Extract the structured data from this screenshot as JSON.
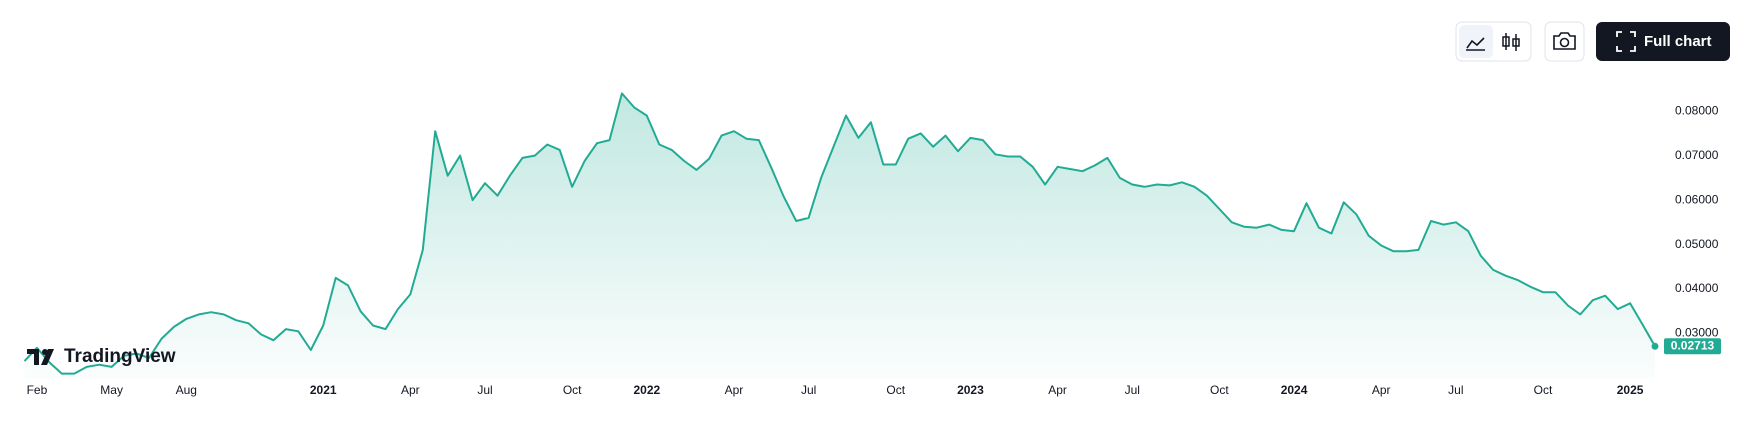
{
  "chart_data": {
    "type": "line",
    "categories": [
      null,
      "Feb",
      null,
      null,
      null,
      null,
      null,
      "May",
      null,
      null,
      null,
      null,
      null,
      "Aug",
      null,
      null,
      null,
      null,
      null,
      null,
      null,
      null,
      null,
      null,
      "2021",
      null,
      null,
      null,
      null,
      null,
      null,
      "Apr",
      null,
      null,
      null,
      null,
      null,
      "Jul",
      null,
      null,
      null,
      null,
      null,
      null,
      "Oct",
      null,
      null,
      null,
      null,
      null,
      "2022",
      null,
      null,
      null,
      null,
      null,
      null,
      "Apr",
      null,
      null,
      null,
      null,
      null,
      "Jul",
      null,
      null,
      null,
      null,
      null,
      null,
      "Oct",
      null,
      null,
      null,
      null,
      null,
      "2023",
      null,
      null,
      null,
      null,
      null,
      null,
      "Apr",
      null,
      null,
      null,
      null,
      null,
      "Jul",
      null,
      null,
      null,
      null,
      null,
      null,
      "Oct",
      null,
      null,
      null,
      null,
      null,
      "2024",
      null,
      null,
      null,
      null,
      null,
      null,
      "Apr",
      null,
      null,
      null,
      null,
      null,
      "Jul",
      null,
      null,
      null,
      null,
      null,
      null,
      "Oct",
      null,
      null,
      null,
      null,
      null,
      null,
      "2025",
      null,
      null
    ],
    "values": [
      0.0238,
      0.0268,
      0.0235,
      0.021,
      0.021,
      0.0225,
      0.023,
      0.0225,
      0.025,
      0.0255,
      0.0245,
      0.0288,
      0.0315,
      0.0333,
      0.0343,
      0.0348,
      0.0343,
      0.033,
      0.0323,
      0.0298,
      0.0285,
      0.031,
      0.0305,
      0.0263,
      0.0318,
      0.0425,
      0.0408,
      0.035,
      0.0318,
      0.031,
      0.0355,
      0.0388,
      0.0488,
      0.0755,
      0.0655,
      0.07,
      0.06,
      0.0638,
      0.061,
      0.0655,
      0.0695,
      0.07,
      0.0725,
      0.0713,
      0.063,
      0.0688,
      0.0728,
      0.0735,
      0.084,
      0.0808,
      0.079,
      0.0725,
      0.0713,
      0.0688,
      0.0668,
      0.0693,
      0.0745,
      0.0755,
      0.0738,
      0.0735,
      0.0673,
      0.0608,
      0.0553,
      0.056,
      0.065,
      0.072,
      0.079,
      0.074,
      0.0775,
      0.068,
      0.068,
      0.0738,
      0.075,
      0.072,
      0.0745,
      0.071,
      0.074,
      0.0735,
      0.0703,
      0.0698,
      0.0698,
      0.0675,
      0.0635,
      0.0675,
      0.067,
      0.0665,
      0.0678,
      0.0695,
      0.065,
      0.0635,
      0.063,
      0.0635,
      0.0633,
      0.064,
      0.063,
      0.061,
      0.058,
      0.055,
      0.054,
      0.0538,
      0.0545,
      0.0533,
      0.053,
      0.0593,
      0.0538,
      0.0525,
      0.0595,
      0.0568,
      0.052,
      0.0498,
      0.0485,
      0.0485,
      0.0488,
      0.0553,
      0.0545,
      0.055,
      0.053,
      0.0475,
      0.0443,
      0.043,
      0.042,
      0.0405,
      0.0393,
      0.0393,
      0.0363,
      0.0343,
      0.0375,
      0.0385,
      0.0355,
      0.0368,
      0.032,
      0.02713
    ],
    "color": "#22ab94",
    "ylim": [
      0.02,
      0.09
    ],
    "yticks": [
      {
        "value": 0.03,
        "label": "0.03000"
      },
      {
        "value": 0.04,
        "label": "0.04000"
      },
      {
        "value": 0.05,
        "label": "0.05000"
      },
      {
        "value": 0.06,
        "label": "0.06000"
      },
      {
        "value": 0.07,
        "label": "0.07000"
      },
      {
        "value": 0.08,
        "label": "0.08000"
      }
    ],
    "grid": false
  },
  "toolbar": {
    "full_chart": "Full chart"
  },
  "logo": "TradingView"
}
